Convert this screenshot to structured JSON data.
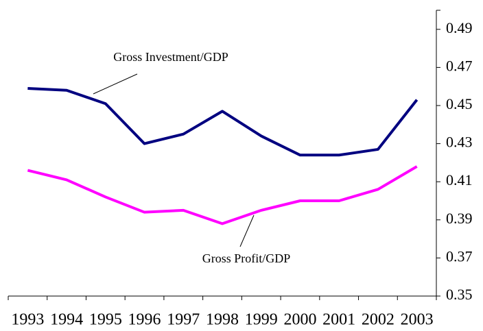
{
  "chart_data": {
    "type": "line",
    "categories": [
      "1993",
      "1994",
      "1995",
      "1996",
      "1997",
      "1998",
      "1999",
      "2000",
      "2001",
      "2002",
      "2003"
    ],
    "series": [
      {
        "name": "Gross Investment/GDP",
        "color": "#000080",
        "values": [
          0.459,
          0.458,
          0.451,
          0.43,
          0.435,
          0.447,
          0.434,
          0.424,
          0.424,
          0.427,
          0.453
        ]
      },
      {
        "name": "Gross Profit/GDP",
        "color": "#ff00ff",
        "values": [
          0.416,
          0.411,
          0.402,
          0.394,
          0.395,
          0.388,
          0.395,
          0.4,
          0.4,
          0.406,
          0.418
        ]
      }
    ],
    "ylim": [
      0.35,
      0.5
    ],
    "yticks": [
      0.35,
      0.37,
      0.39,
      0.41,
      0.43,
      0.45,
      0.47,
      0.49
    ],
    "y_axis_side": "right"
  }
}
